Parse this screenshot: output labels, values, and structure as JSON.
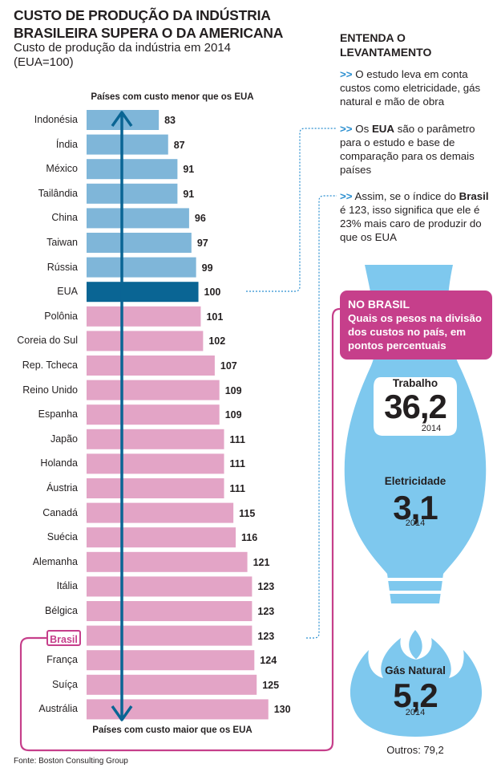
{
  "title": "CUSTO DE PRODUÇÃO DA INDÚSTRIA\nBRASILEIRA SUPERA O DA AMERICANA",
  "subtitle": "Custo de produção da indústria em 2014\n(EUA=100)",
  "top_caption": "Países com custo menor que os EUA",
  "bottom_caption": "Países com custo maior que os EUA",
  "source": "Fonte: Boston Consulting Group",
  "colors": {
    "lower": "#7fb6d9",
    "reference": "#0a6594",
    "higher": "#e3a4c6",
    "accent": "#c63f8b",
    "arrow": "#0a6594",
    "bulb": "#7ec8ee"
  },
  "chart_data": {
    "type": "bar",
    "orientation": "horizontal",
    "categories": [
      "Indonésia",
      "Índia",
      "México",
      "Tailândia",
      "China",
      "Taiwan",
      "Rússia",
      "EUA",
      "Polônia",
      "Coreia do Sul",
      "Rep. Tcheca",
      "Reino Unido",
      "Espanha",
      "Japão",
      "Holanda",
      "Áustria",
      "Canadá",
      "Suécia",
      "Alemanha",
      "Itália",
      "Bélgica",
      "Brasil",
      "França",
      "Suíça",
      "Austrália"
    ],
    "values": [
      83,
      87,
      91,
      91,
      96,
      97,
      99,
      100,
      101,
      102,
      107,
      109,
      109,
      111,
      111,
      111,
      115,
      116,
      121,
      123,
      123,
      123,
      124,
      125,
      130
    ],
    "reference_value": 100,
    "highlight": "Brasil"
  },
  "entenda": {
    "title": "ENTENDA O\nLEVANTAMENTO",
    "note1": {
      "arrows": ">>",
      "text": "O estudo leva em conta custos como eletricidade, gás natural e mão de obra"
    },
    "note2": {
      "arrows": ">>",
      "pre": "Os",
      "bold": "EUA",
      "post": "são o parâmetro para o estudo e base de comparação para os demais países"
    },
    "note3": {
      "arrows": ">>",
      "pre": "Assim, se o índice do",
      "bold": "Brasil",
      "post": "é 123, isso significa que ele é 23% mais caro de produzir do que os EUA"
    }
  },
  "no_brasil": {
    "title": "NO BRASIL",
    "text": "Quais os pesos na divisão dos custos no país, em pontos percentuais"
  },
  "weights": {
    "trabalho": {
      "name": "Trabalho",
      "value": "36,2",
      "year": "2014"
    },
    "eletricidade": {
      "name": "Eletricidade",
      "value": "3,1",
      "year": "2014"
    },
    "gas": {
      "name": "Gás Natural",
      "value": "5,2",
      "year": "2014"
    },
    "outros": "Outros: 79,2"
  }
}
